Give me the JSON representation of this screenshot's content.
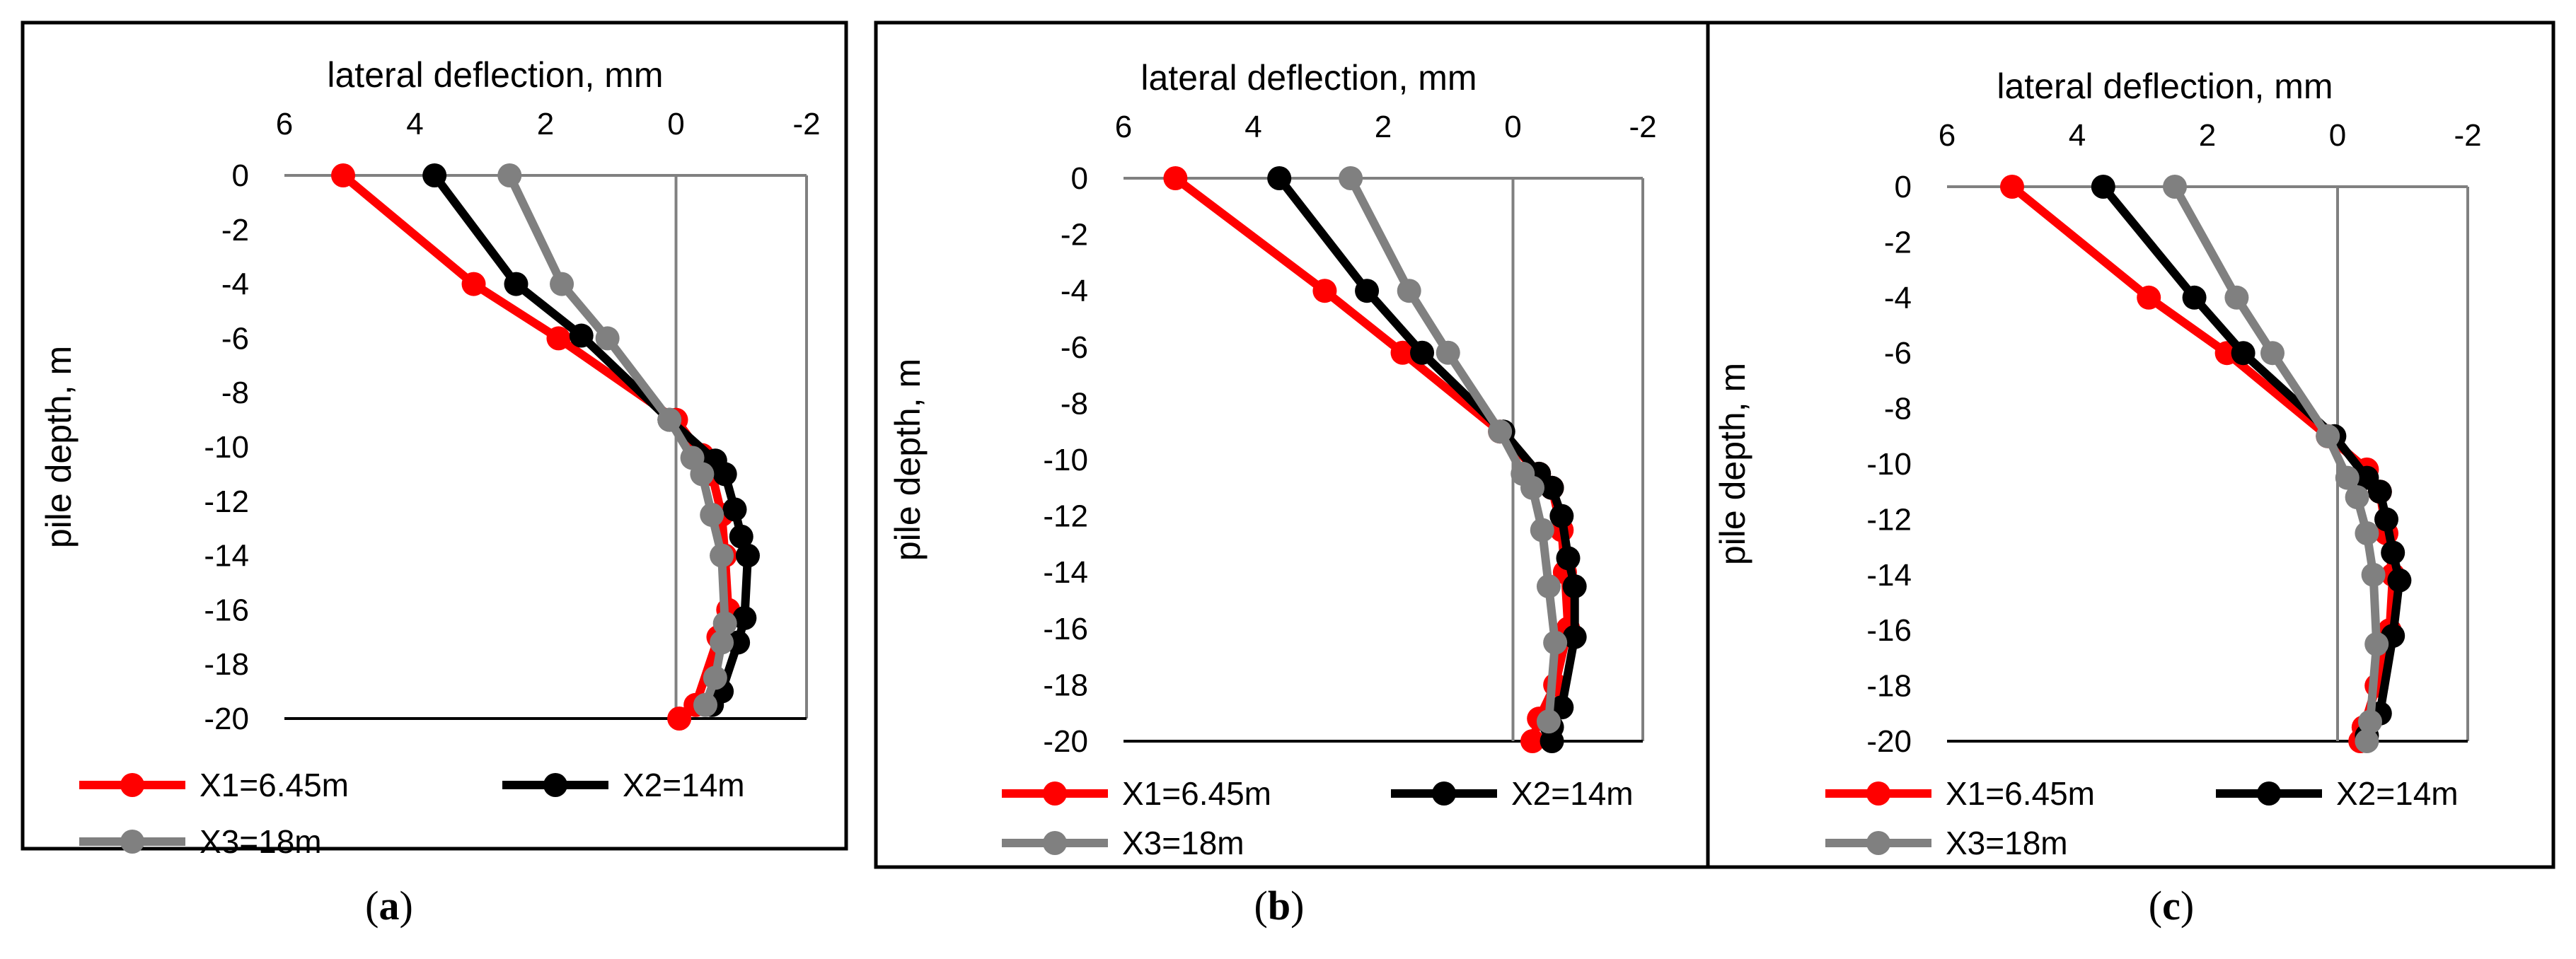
{
  "figure": {
    "colors": {
      "background": "#ffffff",
      "frame": "#000000",
      "axis": "#808080"
    }
  },
  "chart_data": [
    {
      "type": "line",
      "caption": {
        "open": "(",
        "letter": "a",
        "close": ")"
      },
      "xlabel": "lateral deflection, mm",
      "ylabel": "pile depth, m",
      "xlim": [
        6,
        -2
      ],
      "ylim": [
        -20,
        0
      ],
      "xticks": [
        "6",
        "4",
        "2",
        "0",
        "-2"
      ],
      "yticks": [
        "0",
        "-2",
        "-4",
        "-6",
        "-8",
        "-10",
        "-12",
        "-14",
        "-16",
        "-18",
        "-20"
      ],
      "legend": "bottom",
      "series": [
        {
          "name": "X1=6.45m",
          "color": "#ff0000",
          "points": [
            [
              5.1,
              0
            ],
            [
              3.1,
              -4
            ],
            [
              1.8,
              -6
            ],
            [
              0,
              -9
            ],
            [
              -0.4,
              -10.3
            ],
            [
              -0.55,
              -11
            ],
            [
              -0.7,
              -12.5
            ],
            [
              -0.75,
              -14
            ],
            [
              -0.8,
              -16
            ],
            [
              -0.65,
              -17
            ],
            [
              -0.3,
              -19.5
            ],
            [
              -0.05,
              -20
            ]
          ]
        },
        {
          "name": "X2=14m",
          "color": "#000000",
          "points": [
            [
              3.7,
              0
            ],
            [
              2.45,
              -4
            ],
            [
              1.45,
              -5.9
            ],
            [
              0.1,
              -9
            ],
            [
              -0.6,
              -10.5
            ],
            [
              -0.75,
              -11
            ],
            [
              -0.9,
              -12.3
            ],
            [
              -1,
              -13.3
            ],
            [
              -1.1,
              -14
            ],
            [
              -1.05,
              -16.3
            ],
            [
              -0.95,
              -17.2
            ],
            [
              -0.7,
              -19
            ],
            [
              -0.55,
              -19.5
            ]
          ]
        },
        {
          "name": "X3=18m",
          "color": "#808080",
          "points": [
            [
              2.55,
              0
            ],
            [
              1.75,
              -4
            ],
            [
              1.05,
              -6
            ],
            [
              0.1,
              -9
            ],
            [
              -0.25,
              -10.4
            ],
            [
              -0.4,
              -11
            ],
            [
              -0.55,
              -12.5
            ],
            [
              -0.7,
              -14
            ],
            [
              -0.75,
              -16.5
            ],
            [
              -0.7,
              -17.2
            ],
            [
              -0.6,
              -18.5
            ],
            [
              -0.45,
              -19.5
            ]
          ]
        }
      ]
    },
    {
      "type": "line",
      "caption": {
        "open": "(",
        "letter": "b",
        "close": ")"
      },
      "xlabel": "lateral deflection, mm",
      "ylabel": "pile depth, m",
      "xlim": [
        6,
        -2
      ],
      "ylim": [
        -20,
        0
      ],
      "xticks": [
        "6",
        "4",
        "2",
        "0",
        "-2"
      ],
      "yticks": [
        "0",
        "-2",
        "-4",
        "-6",
        "-8",
        "-10",
        "-12",
        "-14",
        "-16",
        "-18",
        "-20"
      ],
      "legend": "bottom",
      "series": [
        {
          "name": "X1=6.45m",
          "color": "#ff0000",
          "points": [
            [
              5.2,
              0
            ],
            [
              2.9,
              -4
            ],
            [
              1.7,
              -6.2
            ],
            [
              0.2,
              -9
            ],
            [
              -0.4,
              -10.5
            ],
            [
              -0.6,
              -11
            ],
            [
              -0.75,
              -12.5
            ],
            [
              -0.8,
              -14
            ],
            [
              -0.85,
              -16
            ],
            [
              -0.65,
              -18
            ],
            [
              -0.4,
              -19.2
            ],
            [
              -0.3,
              -20
            ]
          ]
        },
        {
          "name": "X2=14m",
          "color": "#000000",
          "points": [
            [
              3.6,
              0
            ],
            [
              2.25,
              -4
            ],
            [
              1.4,
              -6.2
            ],
            [
              0.15,
              -9
            ],
            [
              -0.4,
              -10.5
            ],
            [
              -0.6,
              -11
            ],
            [
              -0.75,
              -12
            ],
            [
              -0.85,
              -13.5
            ],
            [
              -0.95,
              -14.5
            ],
            [
              -0.95,
              -16.3
            ],
            [
              -0.75,
              -18.8
            ],
            [
              -0.6,
              -19.5
            ],
            [
              -0.6,
              -20
            ]
          ]
        },
        {
          "name": "X3=18m",
          "color": "#808080",
          "points": [
            [
              2.5,
              0
            ],
            [
              1.6,
              -4
            ],
            [
              1.0,
              -6.2
            ],
            [
              0.2,
              -9
            ],
            [
              -0.15,
              -10.5
            ],
            [
              -0.3,
              -11
            ],
            [
              -0.45,
              -12.5
            ],
            [
              -0.55,
              -14.5
            ],
            [
              -0.65,
              -16.5
            ],
            [
              -0.55,
              -19.3
            ]
          ]
        }
      ]
    },
    {
      "type": "line",
      "caption": {
        "open": "(",
        "letter": "c",
        "close": ")"
      },
      "xlabel": "lateral deflection, mm",
      "ylabel": "pile depth, m",
      "xlim": [
        6,
        -2
      ],
      "ylim": [
        -20,
        0
      ],
      "xticks": [
        "6",
        "4",
        "2",
        "0",
        "-2"
      ],
      "yticks": [
        "0",
        "-2",
        "-4",
        "-6",
        "-8",
        "-10",
        "-12",
        "-14",
        "-16",
        "-18",
        "-20"
      ],
      "legend": "bottom",
      "series": [
        {
          "name": "X1=6.45m",
          "color": "#ff0000",
          "points": [
            [
              5.0,
              0
            ],
            [
              2.9,
              -4
            ],
            [
              1.7,
              -6
            ],
            [
              0.15,
              -9
            ],
            [
              -0.45,
              -10.2
            ],
            [
              -0.65,
              -11
            ],
            [
              -0.75,
              -12.5
            ],
            [
              -0.85,
              -14
            ],
            [
              -0.8,
              -16
            ],
            [
              -0.6,
              -18
            ],
            [
              -0.4,
              -19.5
            ],
            [
              -0.35,
              -20
            ]
          ]
        },
        {
          "name": "X2=14m",
          "color": "#000000",
          "points": [
            [
              3.6,
              0
            ],
            [
              2.2,
              -4
            ],
            [
              1.45,
              -6
            ],
            [
              0.05,
              -9
            ],
            [
              -0.45,
              -10.5
            ],
            [
              -0.65,
              -11
            ],
            [
              -0.75,
              -12
            ],
            [
              -0.85,
              -13.2
            ],
            [
              -0.95,
              -14.2
            ],
            [
              -0.85,
              -16.2
            ],
            [
              -0.65,
              -19
            ],
            [
              -0.45,
              -19.8
            ]
          ]
        },
        {
          "name": "X3=18m",
          "color": "#808080",
          "points": [
            [
              2.5,
              0
            ],
            [
              1.55,
              -4
            ],
            [
              1.0,
              -6
            ],
            [
              0.15,
              -9
            ],
            [
              -0.15,
              -10.5
            ],
            [
              -0.3,
              -11.2
            ],
            [
              -0.45,
              -12.5
            ],
            [
              -0.55,
              -14
            ],
            [
              -0.6,
              -16.5
            ],
            [
              -0.5,
              -19.3
            ],
            [
              -0.45,
              -20
            ]
          ]
        }
      ]
    }
  ]
}
